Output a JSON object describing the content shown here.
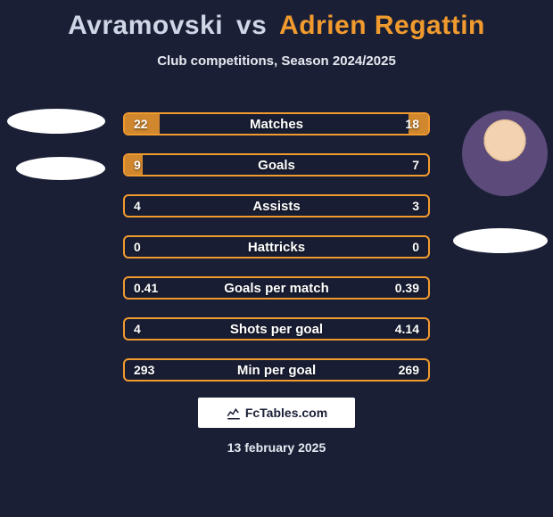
{
  "background_color": "#1a1f36",
  "accent_color": "#f19a2e",
  "text_color": "#e6e9f0",
  "title": {
    "player1": "Avramovski",
    "vs": "vs",
    "player2": "Adrien Regattin",
    "player1_color": "#cfd6e6",
    "player2_color": "#f19a2e",
    "fontsize": 30
  },
  "subtitle": "Club competitions, Season 2024/2025",
  "avatars": {
    "left": {
      "has_photo": false
    },
    "right": {
      "has_photo": true,
      "bg_hint": "#5b4a7a"
    }
  },
  "stats": {
    "bar_border_color": "#f19a2e",
    "bar_fill_color": "rgba(241,154,46,0.85)",
    "label_color": "#ffffff",
    "fontsize": 15,
    "rows": [
      {
        "label": "Matches",
        "left": "22",
        "right": "18",
        "left_pct": 11.6,
        "right_pct": 6.6
      },
      {
        "label": "Goals",
        "left": "9",
        "right": "7",
        "left_pct": 6.0,
        "right_pct": 0.0
      },
      {
        "label": "Assists",
        "left": "4",
        "right": "3",
        "left_pct": 0.0,
        "right_pct": 0.0
      },
      {
        "label": "Hattricks",
        "left": "0",
        "right": "0",
        "left_pct": 0.0,
        "right_pct": 0.0
      },
      {
        "label": "Goals per match",
        "left": "0.41",
        "right": "0.39",
        "left_pct": 0.0,
        "right_pct": 0.0
      },
      {
        "label": "Shots per goal",
        "left": "4",
        "right": "4.14",
        "left_pct": 0.0,
        "right_pct": 0.0
      },
      {
        "label": "Min per goal",
        "left": "293",
        "right": "269",
        "left_pct": 0.0,
        "right_pct": 0.0
      }
    ]
  },
  "logo": {
    "text": "FcTables.com",
    "box_bg": "#ffffff",
    "text_color": "#1a1f36"
  },
  "date": "13 february 2025"
}
